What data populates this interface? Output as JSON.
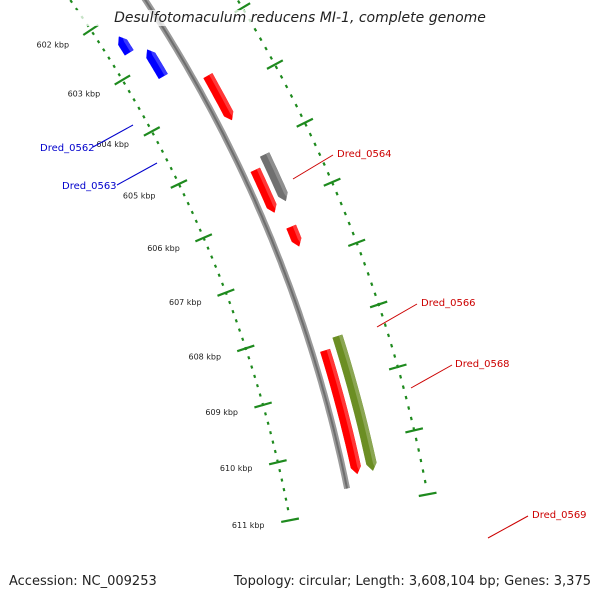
{
  "title": "Desulfotomaculum reducens MI-1, complete genome",
  "footer": {
    "accession": "Accession: NC_009253",
    "summary": "Topology: circular; Length: 3,608,104 bp; Genes: 3,375"
  },
  "colors": {
    "backbone": "#8a8a8a",
    "tick_dots": "#1e8a1e",
    "forward_label": "#cc0000",
    "reverse_label": "#0000cc"
  },
  "ticks": [
    "602 kbp",
    "603 kbp",
    "604 kbp",
    "605 kbp",
    "606 kbp",
    "607 kbp",
    "608 kbp",
    "609 kbp",
    "610 kbp",
    "611 kbp"
  ],
  "gene_labels": [
    {
      "name": "Dred_0562",
      "strand": "reverse"
    },
    {
      "name": "Dred_0563",
      "strand": "reverse"
    },
    {
      "name": "Dred_0564",
      "strand": "forward"
    },
    {
      "name": "Dred_0566",
      "strand": "forward"
    },
    {
      "name": "Dred_0568",
      "strand": "forward"
    },
    {
      "name": "Dred_0569",
      "strand": "forward"
    }
  ],
  "features": [
    {
      "name": "partial-red-top-a",
      "color": "#ff0000"
    },
    {
      "name": "partial-green-top",
      "color": "#33cc33"
    },
    {
      "name": "orange-gene-top",
      "color": "#ff9900"
    },
    {
      "name": "red-gene-top",
      "color": "#ff0000"
    },
    {
      "name": "orange-gene-upper",
      "color": "#ff9900"
    },
    {
      "name": "red-gene-upper",
      "color": "#ff0000"
    },
    {
      "name": "blue-gene-dred-0562",
      "color": "#0000ff"
    },
    {
      "name": "blue-gene-dred-0563",
      "color": "#0000ff"
    },
    {
      "name": "red-gene-dred-0564",
      "color": "#ff0000"
    },
    {
      "name": "red-gene-dred-0565",
      "color": "#ff0000"
    },
    {
      "name": "gray-gene-dred-0566",
      "color": "#707070"
    },
    {
      "name": "red-gene-dred-0568",
      "color": "#ff0000"
    },
    {
      "name": "red-gene-dred-0569-a",
      "color": "#ff0000"
    },
    {
      "name": "olive-gene-dred-0569",
      "color": "#6b8e23"
    }
  ]
}
